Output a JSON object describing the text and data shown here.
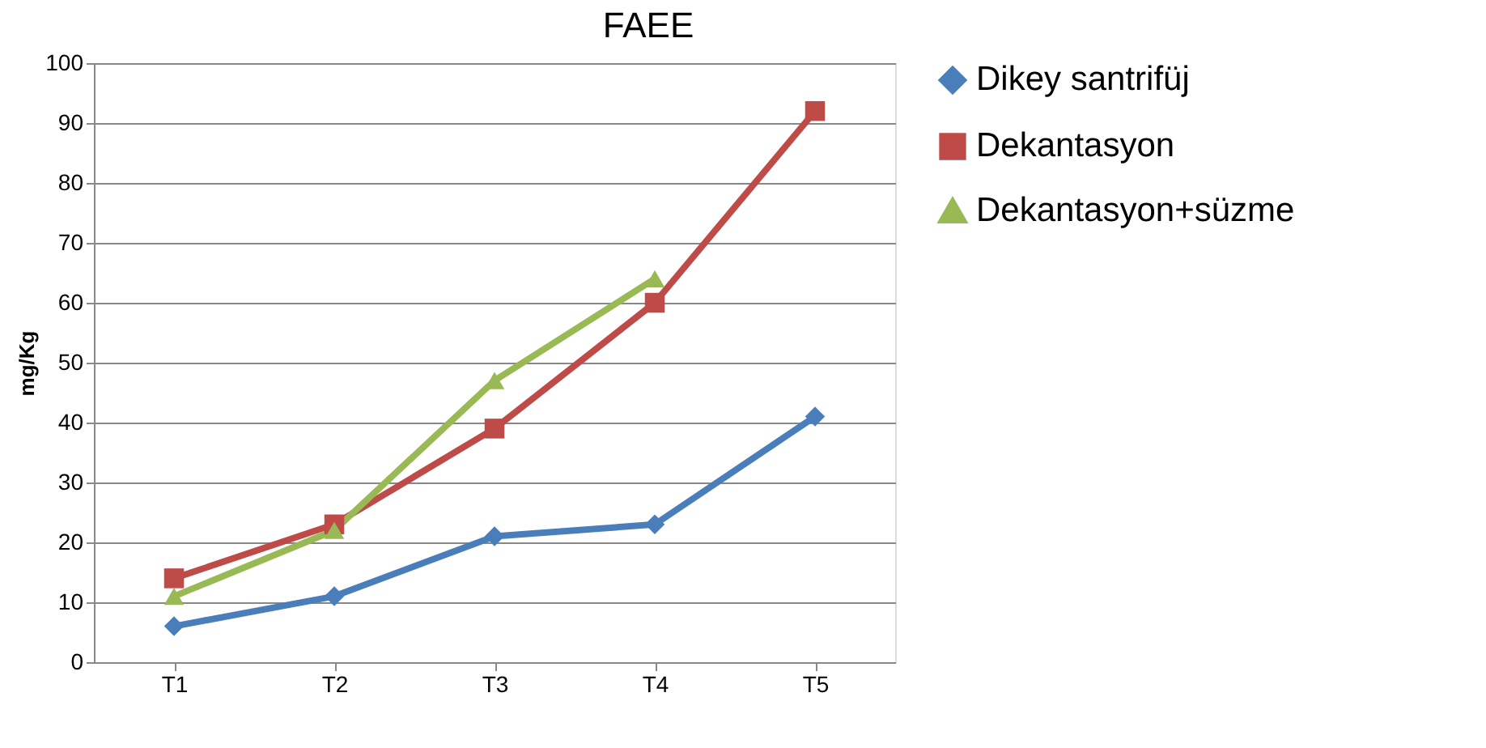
{
  "chart_data": {
    "type": "line",
    "title": "FAEE",
    "ylabel": "mg/Kg",
    "categories": [
      "T1",
      "T2",
      "T3",
      "T4",
      "T5"
    ],
    "ylim": [
      0,
      100
    ],
    "yticks": [
      0,
      10,
      20,
      30,
      40,
      50,
      60,
      70,
      80,
      90,
      100
    ],
    "grid": "y",
    "legend": "right",
    "line_style": "solid",
    "series": [
      {
        "name": "Dikey santrifüj",
        "color": "#4a7ebb",
        "marker": "diamond",
        "values": [
          6,
          11,
          21,
          23,
          41
        ]
      },
      {
        "name": "Dekantasyon",
        "color": "#be4b48",
        "marker": "square",
        "values": [
          14,
          23,
          39,
          60,
          92
        ]
      },
      {
        "name": "Dekantasyon+süzme",
        "color": "#98b954",
        "marker": "triangle",
        "values": [
          11,
          22,
          47,
          64,
          null
        ]
      }
    ]
  }
}
